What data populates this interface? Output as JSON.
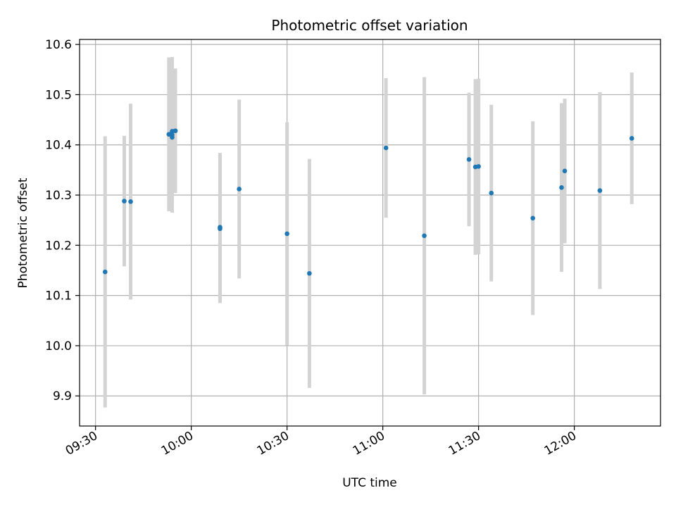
{
  "chart_data": {
    "type": "scatter",
    "title": "Photometric offset variation",
    "xlabel": "UTC time",
    "ylabel": "Photometric offset",
    "x_tick_labels": [
      "09:30",
      "10:00",
      "10:30",
      "11:00",
      "11:30",
      "12:00"
    ],
    "y_tick_labels": [
      "9.9",
      "10.0",
      "10.1",
      "10.2",
      "10.3",
      "10.4",
      "10.5",
      "10.6"
    ],
    "xlim": [
      "09:25",
      "12:27"
    ],
    "ylim": [
      9.84,
      10.61
    ],
    "grid": true,
    "marker_color": "#1f77b4",
    "errorbar_color": "#d3d3d3",
    "series": [
      {
        "x": [
          "09:33",
          "09:39",
          "09:41",
          "09:53",
          "09:53",
          "09:54",
          "09:54",
          "09:54",
          "09:55",
          "09:55",
          "10:09",
          "10:09",
          "10:15",
          "10:30",
          "10:37",
          "11:01",
          "11:13",
          "11:27",
          "11:29",
          "11:30",
          "11:34",
          "11:47",
          "11:56",
          "11:57",
          "12:08",
          "12:18"
        ],
        "y": [
          10.147,
          10.288,
          10.287,
          10.421,
          10.421,
          10.42,
          10.415,
          10.427,
          10.428,
          10.428,
          10.233,
          10.236,
          10.312,
          10.223,
          10.144,
          10.394,
          10.219,
          10.371,
          10.356,
          10.357,
          10.304,
          10.254,
          10.315,
          10.348,
          10.309,
          10.413
        ],
        "yerr": [
          0.27,
          0.13,
          0.195,
          0.153,
          0.153,
          0.155,
          0.15,
          0.14,
          0.124,
          0.124,
          0.148,
          0.148,
          0.178,
          0.222,
          0.228,
          0.139,
          0.316,
          0.133,
          0.175,
          0.175,
          0.176,
          0.193,
          0.168,
          0.144,
          0.196,
          0.131
        ]
      }
    ]
  }
}
